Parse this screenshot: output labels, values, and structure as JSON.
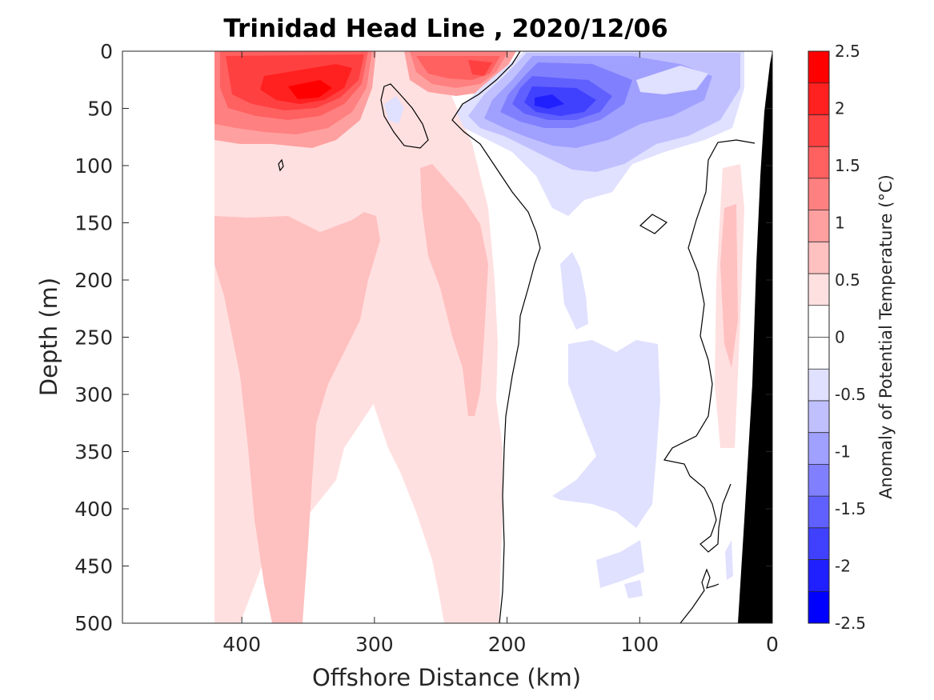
{
  "chart_data": {
    "type": "heatmap",
    "subtype": "filled-contour section",
    "title": "Trinidad Head Line , 2020/12/06",
    "xlabel": "Offshore Distance (km)",
    "ylabel": "Depth (m)",
    "xlim": [
      490,
      0
    ],
    "ylim": [
      500,
      0
    ],
    "x_reversed": true,
    "y_reversed": true,
    "xticks": [
      "400",
      "300",
      "200",
      "100",
      "0"
    ],
    "xtick_values": [
      400,
      300,
      200,
      100,
      0
    ],
    "yticks": [
      "0",
      "50",
      "100",
      "150",
      "200",
      "250",
      "300",
      "350",
      "400",
      "450",
      "500"
    ],
    "ytick_values": [
      0,
      50,
      100,
      150,
      200,
      250,
      300,
      350,
      400,
      450,
      500
    ],
    "colorbar": {
      "label": "Anomaly of Potential Temperature (°C)",
      "range": [
        -2.5,
        2.5
      ],
      "step": 0.25,
      "ticks": [
        "2.5",
        "2",
        "1.5",
        "1",
        "0.5",
        "0",
        "-0.5",
        "-1",
        "-1.5",
        "-2",
        "-2.5"
      ],
      "tick_values": [
        2.5,
        2,
        1.5,
        1,
        0.5,
        0,
        -0.5,
        -1,
        -1.5,
        -2,
        -2.5
      ],
      "colors_top_to_bottom": [
        "#ff0000",
        "#ff2020",
        "#ff4040",
        "#ff6060",
        "#ff8080",
        "#ffa0a0",
        "#ffc0c0",
        "#ffe0e0",
        "#ffffff",
        "#ffffff",
        "#e0e0ff",
        "#c0c0ff",
        "#a0a0ff",
        "#8080ff",
        "#6060ff",
        "#4040ff",
        "#2020ff",
        "#0000ff"
      ]
    },
    "data_coverage_x_km": [
      20,
      420
    ],
    "zero_contour_color": "#000000",
    "bathymetry_color": "#000000",
    "features": [
      {
        "name": "warm surface core",
        "x_km": [
          330,
          370
        ],
        "depth_m": [
          40,
          70
        ],
        "anomaly_c": 2.25
      },
      {
        "name": "warm surface patch",
        "x_km": [
          220,
          270
        ],
        "depth_m": [
          0,
          40
        ],
        "anomaly_c": 1.75
      },
      {
        "name": "cold core",
        "x_km": [
          150,
          200
        ],
        "depth_m": [
          30,
          60
        ],
        "anomaly_c": -2.25
      },
      {
        "name": "weak cold pool",
        "x_km": [
          90,
          200
        ],
        "depth_m": [
          0,
          120
        ],
        "anomaly_c": -0.75
      },
      {
        "name": "warm subsurface tongue",
        "x_km": [
          330,
          380
        ],
        "depth_m": [
          150,
          500
        ],
        "anomaly_c": 0.5
      },
      {
        "name": "warm subsurface tongue",
        "x_km": [
          220,
          280
        ],
        "depth_m": [
          110,
          340
        ],
        "anomaly_c": 0.5
      },
      {
        "name": "weak cold subsurface",
        "x_km": [
          80,
          180
        ],
        "depth_m": [
          250,
          410
        ],
        "anomaly_c": -0.25
      }
    ]
  }
}
